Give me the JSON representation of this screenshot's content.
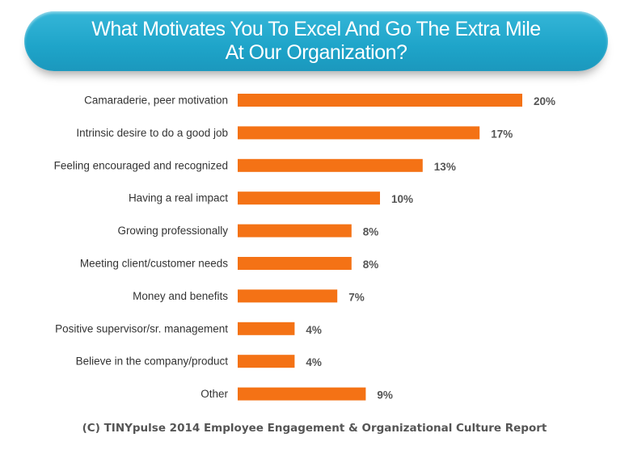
{
  "chart_data": {
    "type": "bar",
    "orientation": "horizontal",
    "title": "What Motivates You To Excel And Go The Extra Mile At Our Organization?",
    "categories": [
      "Camaraderie, peer motivation",
      "Intrinsic desire to do a good job",
      "Feeling encouraged and recognized",
      "Having a real impact",
      "Growing professionally",
      "Meeting client/customer needs",
      "Money and benefits",
      "Positive supervisor/sr. management",
      "Believe in the company/product",
      "Other"
    ],
    "values": [
      20,
      17,
      13,
      10,
      8,
      8,
      7,
      4,
      4,
      9
    ],
    "data_labels": [
      "20%",
      "17%",
      "13%",
      "10%",
      "8%",
      "8%",
      "7%",
      "4%",
      "4%",
      "9%"
    ],
    "unit": "%",
    "xlim": [
      0,
      20
    ],
    "grid": false,
    "bar_color": "#f47215",
    "title_banner_color": "#1ea4c9"
  },
  "footer": "(C) TINYpulse 2014 Employee Engagement & Organizational Culture Report"
}
